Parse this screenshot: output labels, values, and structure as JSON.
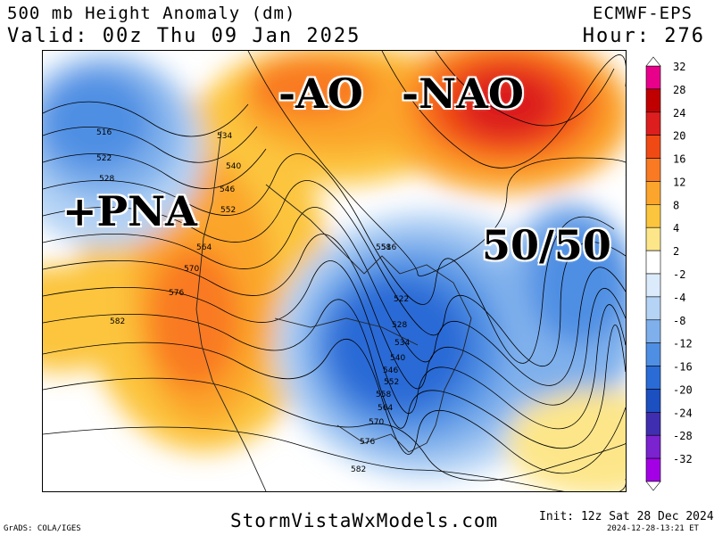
{
  "header": {
    "title": "500 mb Height Anomaly (dm)",
    "valid": "Valid: 00z Thu 09 Jan 2025",
    "model": "ECMWF-EPS",
    "hour": "Hour: 276"
  },
  "annotations": {
    "ao": "-AO",
    "nao": "-NAO",
    "pna": "+PNA",
    "fifty_fifty": "50/50"
  },
  "contour_labels": [
    "516",
    "522",
    "528",
    "534",
    "540",
    "546",
    "552",
    "558",
    "564",
    "570",
    "576",
    "582",
    "5",
    "516",
    "522",
    "528",
    "534",
    "540",
    "546",
    "552",
    "558",
    "564",
    "570",
    "576",
    "582"
  ],
  "colorbar": {
    "levels": [
      "32",
      "28",
      "24",
      "20",
      "16",
      "12",
      "8",
      "4",
      "2",
      "-2",
      "-4",
      "-8",
      "-12",
      "-16",
      "-20",
      "-24",
      "-28",
      "-32"
    ],
    "colors": [
      "#e8008b",
      "#c00000",
      "#dc1e1e",
      "#f04a14",
      "#f97a23",
      "#fba52c",
      "#fcc53e",
      "#fde68a",
      "#ffffff",
      "#dcebfb",
      "#b4d3f5",
      "#7fb0ec",
      "#4f8fe3",
      "#2a6bd6",
      "#1c4fc0",
      "#3f2fb0",
      "#7a23cf",
      "#a400e6"
    ]
  },
  "footer": {
    "grads": "GrADS: COLA/IGES",
    "site": "StormVistaWxModels.com",
    "init": "Init: 12z Sat 28 Dec 2024",
    "timestamp": "2024-12-28-13:21 ET"
  }
}
